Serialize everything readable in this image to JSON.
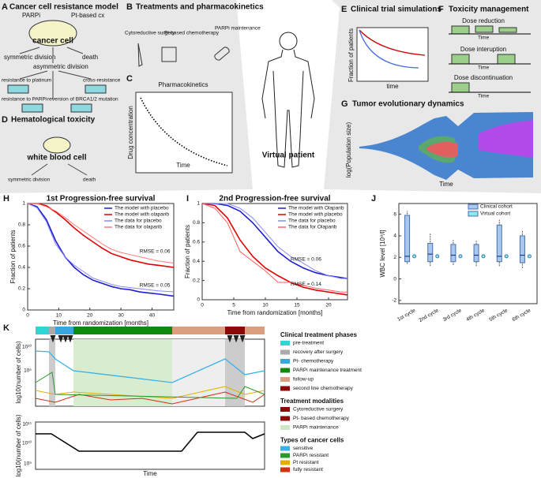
{
  "panels": {
    "letters": [
      "A",
      "B",
      "C",
      "D",
      "E",
      "F",
      "G",
      "H",
      "I",
      "J",
      "K"
    ],
    "a": {
      "title": "Cancer cell resistance model",
      "parpi": "PARPi",
      "pt": "Pt-based cx",
      "cell": "cancer cell",
      "sym": "symmetric division",
      "death": "death",
      "asym": "asymmetric division",
      "res_pt": "resistance to platinum",
      "cross": "cross-resistance",
      "res_parpi": "resistance to PARPi",
      "reversion": "reversion of BRCA1/2 mutation"
    },
    "b": {
      "title": "Treatments and pharmacokinetics",
      "surgery": "Cytoreductive surgery",
      "chemo": "Pt-based chemotherapy",
      "maint": "PARPi maintenance"
    },
    "c": {
      "title": "Pharmacokinetics",
      "ylabel": "Drug concentration",
      "xlabel": "Time"
    },
    "d": {
      "title": "Hematological toxicity",
      "cell": "white blood cell",
      "sym": "symmetric division",
      "death": "death"
    },
    "center": "Virtual patient",
    "e": {
      "title": "Clinical trial simulations",
      "ylabel": "Fraction of patients",
      "xlabel": "time"
    },
    "f": {
      "title": "Toxicity management",
      "items": [
        "Dose reduction",
        "Dose interuption",
        "Dose discontinuation"
      ],
      "time": "Time"
    },
    "g": {
      "title": "Tumor evolutionary dynamics",
      "ylabel": "log(Population size)",
      "xlabel": "Time"
    },
    "k": {
      "ylabel": "log10(number of cells)",
      "top_ticks": [
        "10¹⁰",
        "10⁵"
      ],
      "bottom_ticks": [
        "10¹¹",
        "10¹⁰",
        "10⁹"
      ],
      "xlabel": "Time",
      "legend": [
        {
          "heading": "Clinical treatment phases",
          "items": [
            "pre-treatment",
            "recovery after surgery",
            "Pt- chemotherapy",
            "PARPi maintenance treatment",
            "follow-up",
            "second line chemotherapy"
          ]
        },
        {
          "heading": "Treatment modalities",
          "items": [
            "Cytoreductive surgery",
            "Pt- based chemotherapy",
            "PARPi maintenance"
          ]
        },
        {
          "heading": "Types of cancer cells",
          "items": [
            "sensitive",
            "PARPi resistant",
            "Pt resistant",
            "fully resistant"
          ]
        }
      ]
    }
  },
  "chart_data": [
    {
      "type": "line",
      "title": "1st Progression-free survival",
      "xlabel": "Time from randomization [months]",
      "ylabel": "Fraction of patients",
      "x": [
        0,
        3,
        6,
        9,
        12,
        15,
        18,
        21,
        24,
        27,
        30,
        33,
        36,
        39,
        42,
        47
      ],
      "xlim": [
        0,
        47
      ],
      "xticks": [
        0,
        10,
        20,
        30,
        40
      ],
      "ylim": [
        0,
        1
      ],
      "yticks": [
        0,
        0.2,
        0.4,
        0.6,
        0.8,
        1
      ],
      "series": [
        {
          "name": "The model with placebo",
          "color": "#1f1fd0",
          "values": [
            1,
            0.97,
            0.85,
            0.65,
            0.5,
            0.4,
            0.33,
            0.28,
            0.25,
            0.22,
            0.2,
            0.19,
            0.17,
            0.16,
            0.15,
            0.13
          ]
        },
        {
          "name": "The model with olaparib",
          "color": "#e00000",
          "values": [
            1,
            1,
            0.98,
            0.92,
            0.85,
            0.77,
            0.7,
            0.64,
            0.58,
            0.53,
            0.5,
            0.47,
            0.45,
            0.43,
            0.42,
            0.4
          ]
        },
        {
          "name": "The data for placebo",
          "color": "#8a8aff",
          "values": [
            1,
            0.96,
            0.83,
            0.62,
            0.5,
            0.42,
            0.36,
            0.3,
            0.27,
            0.24,
            0.22,
            0.21,
            0.2,
            0.19,
            0.18,
            0.17
          ]
        },
        {
          "name": "The data for olaparib",
          "color": "#ff7a7a",
          "values": [
            1,
            1,
            0.97,
            0.93,
            0.87,
            0.8,
            0.74,
            0.68,
            0.62,
            0.57,
            0.54,
            0.52,
            0.5,
            0.48,
            0.46,
            0.44
          ]
        }
      ],
      "annotations": [
        {
          "text": "RMSE = 0.06",
          "x": 36,
          "y": 0.55
        },
        {
          "text": "RMSE = 0.05",
          "x": 36,
          "y": 0.23
        }
      ]
    },
    {
      "type": "line",
      "title": "2nd Progression-free survival",
      "xlabel": "Time from randomization [months]",
      "ylabel": "Fraction of patients",
      "x": [
        0,
        2,
        4,
        6,
        8,
        10,
        12,
        14,
        16,
        18,
        20,
        22,
        23
      ],
      "xlim": [
        0,
        23
      ],
      "xticks": [
        0,
        5,
        10,
        15,
        20
      ],
      "ylim": [
        0,
        1
      ],
      "yticks": [
        0,
        0.2,
        0.4,
        0.6,
        0.8,
        1
      ],
      "series": [
        {
          "name": "The model with Olaparib",
          "color": "#1f1fd0",
          "values": [
            1,
            1,
            0.98,
            0.92,
            0.8,
            0.65,
            0.5,
            0.4,
            0.33,
            0.28,
            0.25,
            0.23,
            0.22
          ]
        },
        {
          "name": "The model with placebo",
          "color": "#e00000",
          "values": [
            1,
            0.98,
            0.85,
            0.62,
            0.45,
            0.33,
            0.25,
            0.18,
            0.13,
            0.1,
            0.08,
            0.06,
            0.05
          ]
        },
        {
          "name": "The data for placebo",
          "color": "#8a8aff",
          "values": [
            1,
            1,
            1,
            0.95,
            0.85,
            0.7,
            0.55,
            0.45,
            0.38,
            0.3,
            0.25,
            0.22,
            0.22
          ]
        },
        {
          "name": "The data for Olaparib",
          "color": "#ff6060",
          "values": [
            1,
            0.95,
            0.8,
            0.5,
            0.4,
            0.3,
            0.18,
            0.18,
            0.15,
            0.12,
            0.1,
            0.08,
            0.08
          ]
        }
      ],
      "annotations": [
        {
          "text": "RMSE = 0.06",
          "x": 14,
          "y": 0.42
        },
        {
          "text": "RMSE = 0.14",
          "x": 14,
          "y": 0.16
        }
      ]
    },
    {
      "type": "box",
      "ylabel": "WBC level [10⁹/l]",
      "categories": [
        "1st cycle",
        "2nd cycle",
        "3rd cycle",
        "4th cycle",
        "5th cycle",
        "6th cycle"
      ],
      "ylim": [
        -2.3,
        7
      ],
      "yticks": [
        -2,
        0,
        2,
        4,
        6
      ],
      "series": [
        {
          "name": "Clinical cohort",
          "color": "#a9c8f0",
          "min": [
            1.4,
            1.2,
            1.3,
            1.2,
            1.2,
            1.0
          ],
          "q1": [
            1.6,
            1.6,
            1.6,
            1.6,
            1.6,
            1.5
          ],
          "median": [
            2.1,
            2.3,
            2.2,
            2.2,
            2.1,
            2.2
          ],
          "q3": [
            5.9,
            3.3,
            3.2,
            3.2,
            5.0,
            4.0
          ],
          "max": [
            6.3,
            4.2,
            3.6,
            3.6,
            5.5,
            4.5
          ]
        },
        {
          "name": "Virtual cohort",
          "color": "#8fe8ef",
          "values": [
            2.1,
            2.1,
            2.1,
            2.1,
            2.1,
            2.1
          ]
        }
      ]
    }
  ]
}
